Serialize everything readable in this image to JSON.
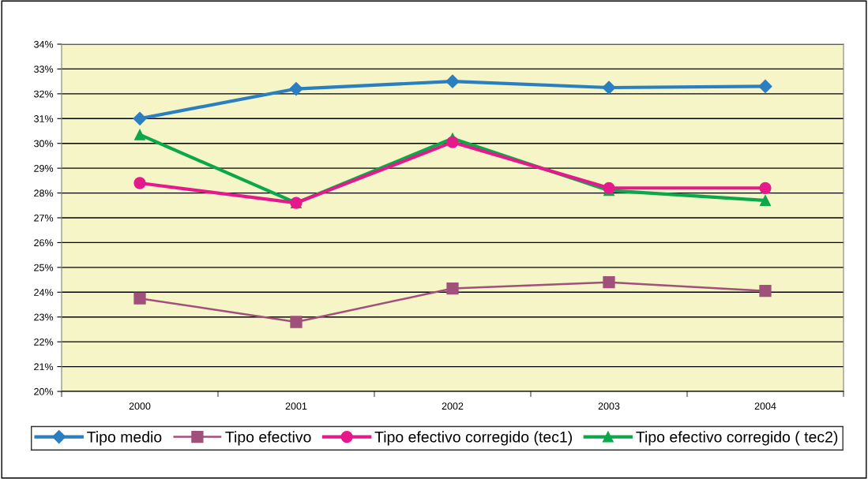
{
  "chart_data": {
    "type": "line",
    "categories": [
      "2000",
      "2001",
      "2002",
      "2003",
      "2004"
    ],
    "series": [
      {
        "name": "Tipo medio",
        "color": "#2a7fc1",
        "marker": "diamond",
        "values": [
          31.0,
          32.2,
          32.5,
          32.25,
          32.3
        ]
      },
      {
        "name": "Tipo efectivo",
        "color": "#a0507a",
        "marker": "square",
        "values": [
          23.75,
          22.8,
          24.15,
          24.4,
          24.05
        ]
      },
      {
        "name": "Tipo efectivo corregido (tec1)",
        "color": "#e6198c",
        "marker": "circle",
        "values": [
          28.4,
          27.6,
          30.05,
          28.2,
          28.2
        ]
      },
      {
        "name": "Tipo efectivo corregido ( tec2)",
        "color": "#0aa84a",
        "marker": "triangle",
        "values": [
          30.35,
          27.6,
          30.2,
          28.1,
          27.7
        ]
      }
    ],
    "ylim": [
      20,
      34
    ],
    "yticks": [
      {
        "value": 20,
        "label": "20%"
      },
      {
        "value": 21,
        "label": "21%"
      },
      {
        "value": 22,
        "label": "22%"
      },
      {
        "value": 23,
        "label": "23%"
      },
      {
        "value": 24,
        "label": "24%"
      },
      {
        "value": 25,
        "label": "25%"
      },
      {
        "value": 26,
        "label": "26%"
      },
      {
        "value": 27,
        "label": "27%"
      },
      {
        "value": 28,
        "label": "28%"
      },
      {
        "value": 29,
        "label": "29%"
      },
      {
        "value": 30,
        "label": "30%"
      },
      {
        "value": 31,
        "label": "31%"
      },
      {
        "value": 32,
        "label": "32%"
      },
      {
        "value": 33,
        "label": "33%"
      },
      {
        "value": 34,
        "label": "34%"
      }
    ],
    "grid": "y",
    "legend": "bottom"
  }
}
